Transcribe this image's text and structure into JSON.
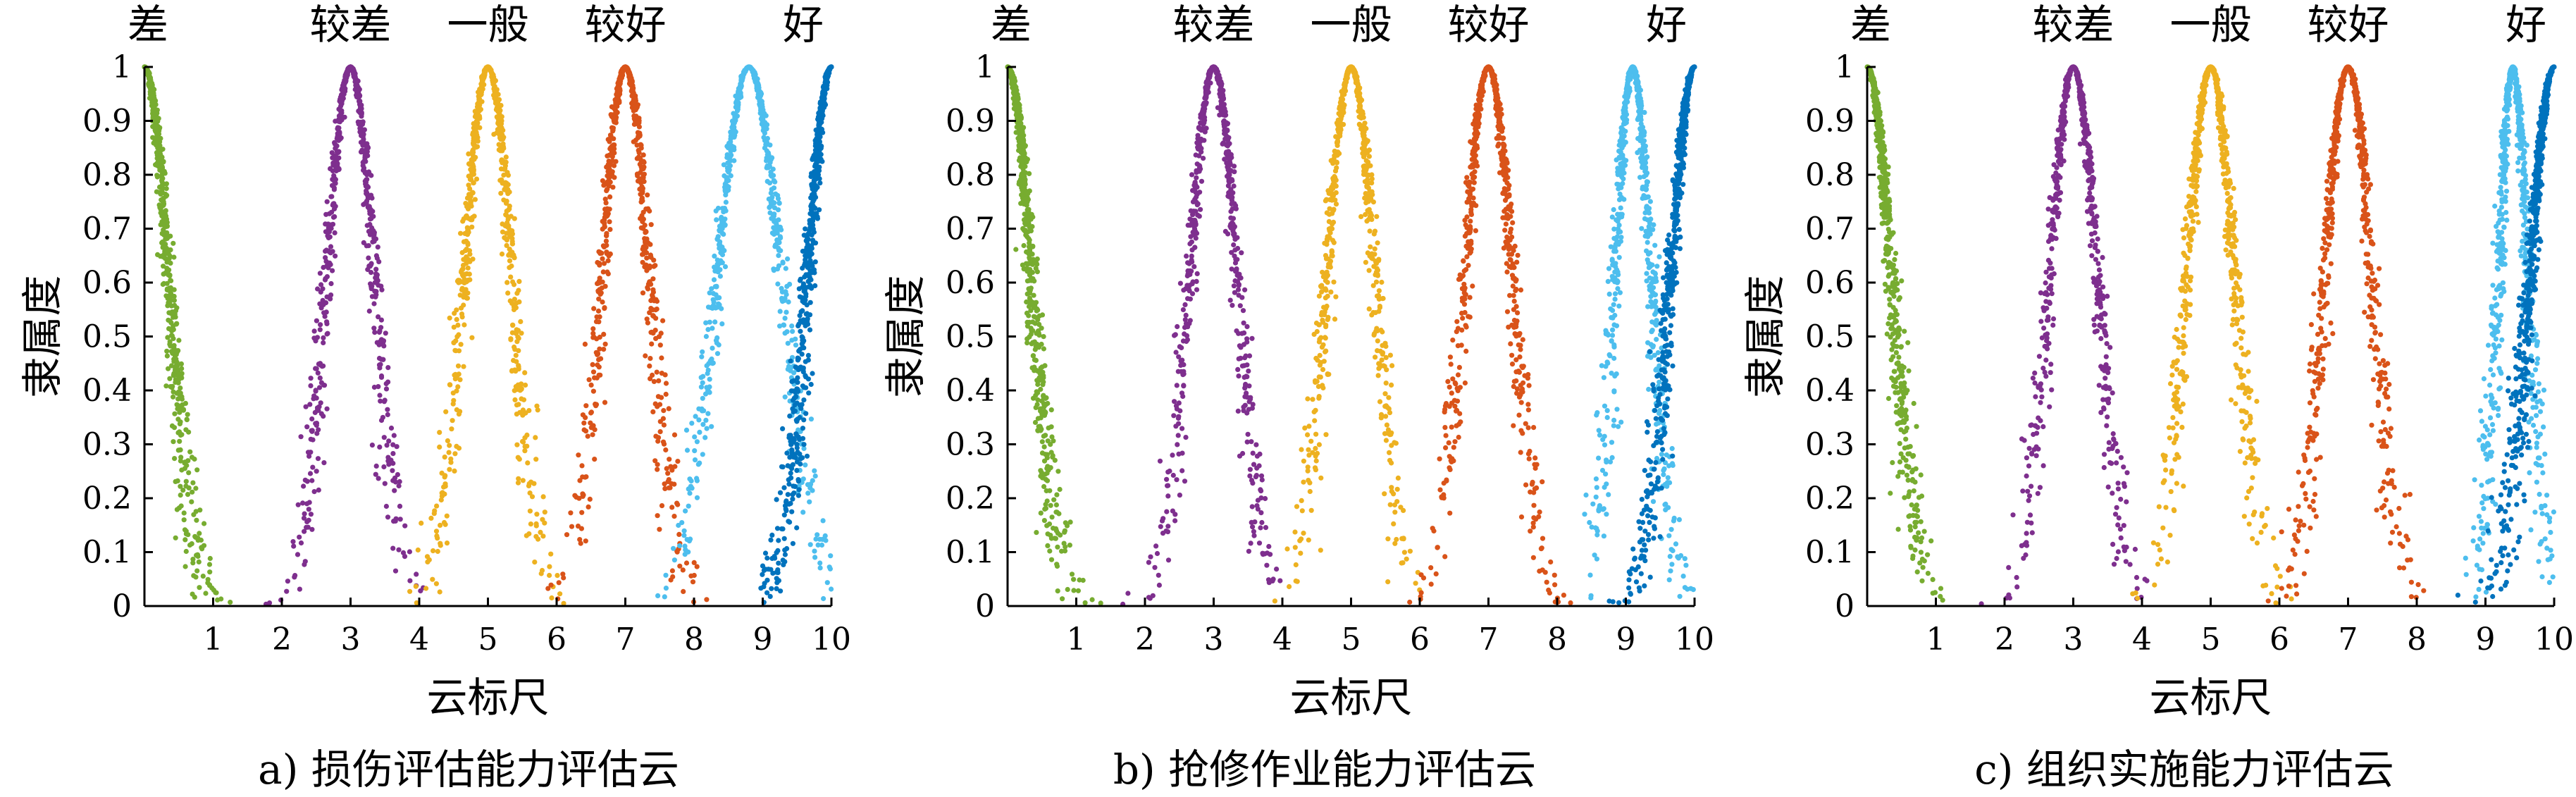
{
  "chart_data": [
    {
      "type": "scatter",
      "caption": "a) 损伤评估能力评估云",
      "xlabel": "云标尺",
      "ylabel": "隶属度",
      "xlim": [
        0,
        10
      ],
      "ylim": [
        0,
        1
      ],
      "xticks": [
        "1",
        "2",
        "3",
        "4",
        "5",
        "6",
        "7",
        "8",
        "9",
        "10"
      ],
      "yticks": [
        "0",
        "0.1",
        "0.2",
        "0.3",
        "0.4",
        "0.5",
        "0.6",
        "0.7",
        "0.8",
        "0.9",
        "1"
      ],
      "grid": false,
      "series": [
        {
          "name": "差",
          "ex": 0,
          "en": 0.333,
          "color": "#77AC30",
          "half": "right"
        },
        {
          "name": "较差",
          "ex": 3,
          "en": 0.333,
          "color": "#7E2F8E",
          "half": "both"
        },
        {
          "name": "一般",
          "ex": 5,
          "en": 0.333,
          "color": "#EDB120",
          "half": "both"
        },
        {
          "name": "较好",
          "ex": 7,
          "en": 0.333,
          "color": "#D95319",
          "half": "both"
        },
        {
          "name": "",
          "ex": 8.8,
          "en": 0.45,
          "color": "#4DBEEE",
          "half": "both"
        },
        {
          "name": "好",
          "ex": 10,
          "en": 0.333,
          "color": "#0072BD",
          "half": "left"
        }
      ]
    },
    {
      "type": "scatter",
      "caption": "b) 抢修作业能力评估云",
      "xlabel": "云标尺",
      "ylabel": "隶属度",
      "xlim": [
        0,
        10
      ],
      "ylim": [
        0,
        1
      ],
      "xticks": [
        "1",
        "2",
        "3",
        "4",
        "5",
        "6",
        "7",
        "8",
        "9",
        "10"
      ],
      "yticks": [
        "0",
        "0.1",
        "0.2",
        "0.3",
        "0.4",
        "0.5",
        "0.6",
        "0.7",
        "0.8",
        "0.9",
        "1"
      ],
      "grid": false,
      "series": [
        {
          "name": "差",
          "ex": 0,
          "en": 0.333,
          "color": "#77AC30",
          "half": "right"
        },
        {
          "name": "较差",
          "ex": 3,
          "en": 0.333,
          "color": "#7E2F8E",
          "half": "both"
        },
        {
          "name": "一般",
          "ex": 5,
          "en": 0.333,
          "color": "#EDB120",
          "half": "both"
        },
        {
          "name": "较好",
          "ex": 7,
          "en": 0.333,
          "color": "#D95319",
          "half": "both"
        },
        {
          "name": "",
          "ex": 9.1,
          "en": 0.25,
          "color": "#4DBEEE",
          "half": "both"
        },
        {
          "name": "好",
          "ex": 10,
          "en": 0.333,
          "color": "#0072BD",
          "half": "left"
        }
      ]
    },
    {
      "type": "scatter",
      "caption": "c) 组织实施能力评估云",
      "xlabel": "云标尺",
      "ylabel": "隶属度",
      "xlim": [
        0,
        10
      ],
      "ylim": [
        0,
        1
      ],
      "xticks": [
        "1",
        "2",
        "3",
        "4",
        "5",
        "6",
        "7",
        "8",
        "9",
        "10"
      ],
      "yticks": [
        "0",
        "0.1",
        "0.2",
        "0.3",
        "0.4",
        "0.5",
        "0.6",
        "0.7",
        "0.8",
        "0.9",
        "1"
      ],
      "grid": false,
      "series": [
        {
          "name": "差",
          "ex": 0,
          "en": 0.333,
          "color": "#77AC30",
          "half": "right"
        },
        {
          "name": "较差",
          "ex": 3,
          "en": 0.333,
          "color": "#7E2F8E",
          "half": "both"
        },
        {
          "name": "一般",
          "ex": 5,
          "en": 0.333,
          "color": "#EDB120",
          "half": "both"
        },
        {
          "name": "较好",
          "ex": 7,
          "en": 0.333,
          "color": "#D95319",
          "half": "both"
        },
        {
          "name": "",
          "ex": 9.4,
          "en": 0.2,
          "color": "#4DBEEE",
          "half": "both"
        },
        {
          "name": "好",
          "ex": 10,
          "en": 0.333,
          "color": "#0072BD",
          "half": "left"
        }
      ]
    }
  ]
}
